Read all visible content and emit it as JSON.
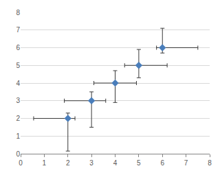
{
  "chart_data": {
    "type": "scatter",
    "x": [
      2,
      3,
      4,
      5,
      6
    ],
    "values": [
      2,
      3,
      4,
      5,
      6
    ],
    "x_error_minus": [
      1.45,
      1.15,
      0.9,
      0.6,
      0.25
    ],
    "x_error_plus": [
      0.3,
      0.6,
      0.9,
      1.2,
      1.5
    ],
    "y_error_minus": [
      1.85,
      1.5,
      1.1,
      0.7,
      0.3
    ],
    "y_error_plus": [
      0.3,
      0.5,
      0.7,
      0.9,
      1.1
    ],
    "color": "#4a7ebb",
    "marker": "diamond",
    "xlim": [
      0,
      8
    ],
    "xticks": [
      0,
      1,
      2,
      3,
      4,
      5,
      6,
      7,
      8
    ],
    "ylim": [
      0,
      8
    ],
    "yticks": [
      0,
      1,
      2,
      3,
      4,
      5,
      6,
      7,
      8
    ],
    "grid": true
  }
}
